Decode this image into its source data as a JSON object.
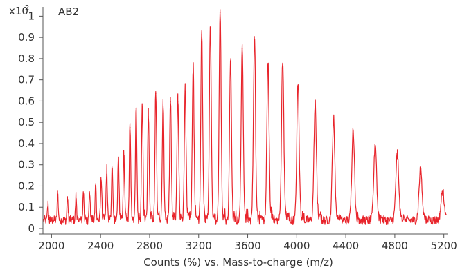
{
  "chart_data": {
    "type": "line",
    "xlabel": "Counts (%) vs. Mass-to-charge (m/z)",
    "y_multiplier_base": "x10",
    "y_multiplier_exp": "2",
    "series_name": "AB2",
    "xlim": [
      1930,
      5230
    ],
    "ylim": [
      0,
      1.05
    ],
    "x_ticks": [
      2000,
      2400,
      2800,
      3200,
      3600,
      4000,
      4400,
      4800,
      5200
    ],
    "y_ticks": [
      0,
      0.1,
      0.2,
      0.3,
      0.4,
      0.5,
      0.6,
      0.7,
      0.8,
      0.9,
      1
    ],
    "y_tick_labels": [
      "0",
      "0.1",
      "0.2",
      "0.3",
      "0.4",
      "0.5",
      "0.6",
      "0.7",
      "0.8",
      "0.9",
      "1"
    ],
    "baseline": 0.04,
    "series_color": "#e8242b",
    "peaks": [
      {
        "x": 1970,
        "y": 0.08
      },
      {
        "x": 2050,
        "y": 0.13
      },
      {
        "x": 2130,
        "y": 0.12
      },
      {
        "x": 2200,
        "y": 0.12
      },
      {
        "x": 2260,
        "y": 0.14
      },
      {
        "x": 2310,
        "y": 0.15
      },
      {
        "x": 2360,
        "y": 0.17
      },
      {
        "x": 2405,
        "y": 0.2
      },
      {
        "x": 2450,
        "y": 0.24
      },
      {
        "x": 2495,
        "y": 0.26
      },
      {
        "x": 2545,
        "y": 0.3
      },
      {
        "x": 2590,
        "y": 0.32
      },
      {
        "x": 2640,
        "y": 0.46
      },
      {
        "x": 2690,
        "y": 0.55
      },
      {
        "x": 2740,
        "y": 0.56
      },
      {
        "x": 2790,
        "y": 0.51
      },
      {
        "x": 2850,
        "y": 0.62
      },
      {
        "x": 2910,
        "y": 0.56
      },
      {
        "x": 2970,
        "y": 0.58
      },
      {
        "x": 3030,
        "y": 0.58
      },
      {
        "x": 3090,
        "y": 0.63
      },
      {
        "x": 3155,
        "y": 0.72
      },
      {
        "x": 3225,
        "y": 0.9
      },
      {
        "x": 3295,
        "y": 0.91
      },
      {
        "x": 3375,
        "y": 1.0
      },
      {
        "x": 3460,
        "y": 0.75
      },
      {
        "x": 3555,
        "y": 0.83
      },
      {
        "x": 3655,
        "y": 0.86
      },
      {
        "x": 3765,
        "y": 0.73
      },
      {
        "x": 3885,
        "y": 0.76
      },
      {
        "x": 4010,
        "y": 0.64
      },
      {
        "x": 4150,
        "y": 0.54
      },
      {
        "x": 4300,
        "y": 0.47
      },
      {
        "x": 4460,
        "y": 0.43
      },
      {
        "x": 4640,
        "y": 0.36
      },
      {
        "x": 4820,
        "y": 0.31
      },
      {
        "x": 5010,
        "y": 0.24
      },
      {
        "x": 5190,
        "y": 0.14
      }
    ]
  }
}
